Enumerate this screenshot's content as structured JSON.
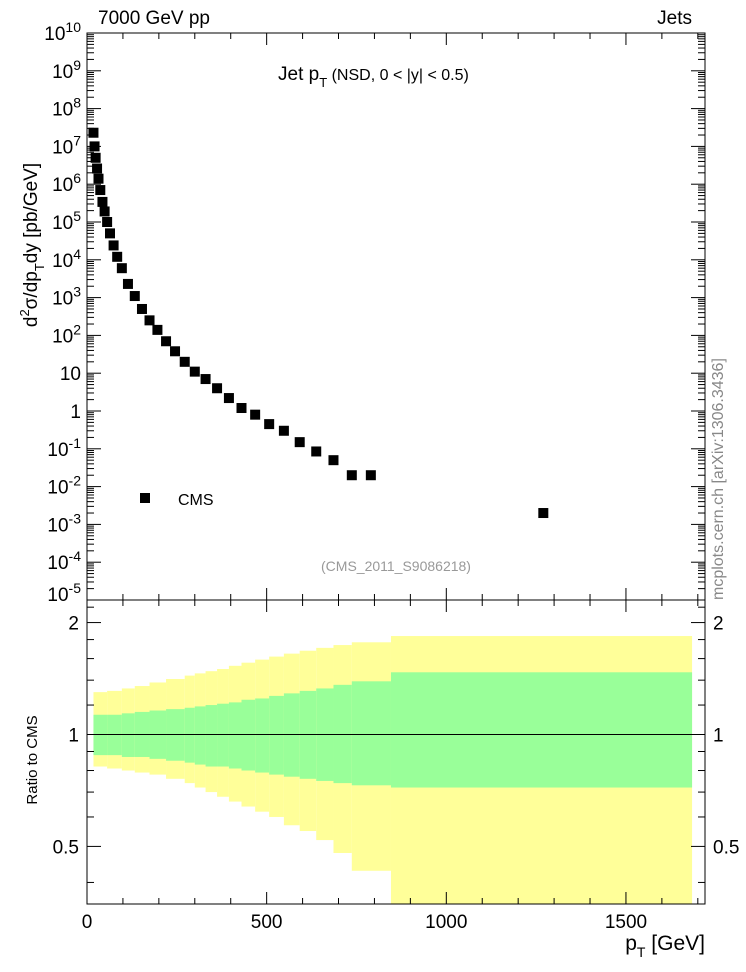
{
  "header": {
    "left": "7000 GeV pp",
    "right": "Jets"
  },
  "side_label": "mcplots.cern.ch [arXiv:1306.3436]",
  "chart_data": [
    {
      "type": "scatter",
      "title": "Jet p_T (NSD, 0 < |y| < 0.5)",
      "title_parts": {
        "main": "Jet p",
        "sub": "T",
        "rest": " (NSD,   0 < |y| < 0.5)"
      },
      "ylabel": "d²σ/dp_T dy [pb/GeV]",
      "y_scale": "log",
      "ylim": [
        1e-05,
        10000000000.0
      ],
      "xlim": [
        0,
        1720
      ],
      "y_tick_labels": [
        "10^10",
        "10^9",
        "10^8",
        "10^7",
        "10^6",
        "10^5",
        "10^4",
        "10^3",
        "10^2",
        "10",
        "1",
        "10^-1",
        "10^-2",
        "10^-3",
        "10^-4",
        "10^-5"
      ],
      "legend": {
        "entries": [
          "CMS"
        ],
        "placement": "lower-left"
      },
      "annotation": "(CMS_2011_S9086218)",
      "series": [
        {
          "name": "CMS",
          "marker": "square",
          "color": "#000000",
          "x": [
            18,
            21,
            24,
            28,
            32,
            37,
            43,
            49,
            56,
            64,
            74,
            84,
            97,
            114,
            133,
            153,
            174,
            196,
            220,
            245,
            272,
            300,
            330,
            362,
            395,
            430,
            468,
            507,
            548,
            592,
            638,
            686,
            737,
            790,
            1270
          ],
          "y": [
            23000000.0,
            10000000.0,
            5000000.0,
            2600000.0,
            1400000.0,
            700000.0,
            340000.0,
            190000.0,
            100000.0,
            50000.0,
            24000.0,
            12000.0,
            6000.0,
            2300.0,
            1100.0,
            500,
            250,
            140,
            70,
            38,
            20,
            11,
            7,
            4,
            2.2,
            1.2,
            0.8,
            0.45,
            0.3,
            0.15,
            0.085,
            0.05,
            0.02,
            0.02,
            0.002
          ]
        }
      ]
    },
    {
      "type": "area",
      "ylabel": "Ratio to CMS",
      "xlabel": "p_T [GeV]",
      "xlabel_parts": {
        "main": "p",
        "sub": "T",
        "rest": " [GeV]"
      },
      "xlim": [
        0,
        1720
      ],
      "ylim": [
        0.35,
        2.3
      ],
      "y_scale": "log",
      "x_ticks": [
        0,
        500,
        1000,
        1500
      ],
      "y_ticks": [
        0.5,
        1,
        2
      ],
      "reference_line": 1,
      "band_colors": {
        "inner": "#99ff99",
        "outer": "#ffff99"
      },
      "bins": [
        {
          "x0": 18,
          "x1": 56,
          "inner": [
            0.88,
            1.13
          ],
          "outer": [
            0.82,
            1.3
          ]
        },
        {
          "x0": 56,
          "x1": 97,
          "inner": [
            0.88,
            1.13
          ],
          "outer": [
            0.81,
            1.31
          ]
        },
        {
          "x0": 97,
          "x1": 133,
          "inner": [
            0.87,
            1.14
          ],
          "outer": [
            0.8,
            1.33
          ]
        },
        {
          "x0": 133,
          "x1": 174,
          "inner": [
            0.87,
            1.15
          ],
          "outer": [
            0.79,
            1.35
          ]
        },
        {
          "x0": 174,
          "x1": 220,
          "inner": [
            0.86,
            1.16
          ],
          "outer": [
            0.78,
            1.38
          ]
        },
        {
          "x0": 220,
          "x1": 272,
          "inner": [
            0.85,
            1.17
          ],
          "outer": [
            0.76,
            1.41
          ]
        },
        {
          "x0": 272,
          "x1": 300,
          "inner": [
            0.84,
            1.18
          ],
          "outer": [
            0.74,
            1.44
          ]
        },
        {
          "x0": 300,
          "x1": 330,
          "inner": [
            0.83,
            1.19
          ],
          "outer": [
            0.72,
            1.46
          ]
        },
        {
          "x0": 330,
          "x1": 362,
          "inner": [
            0.82,
            1.2
          ],
          "outer": [
            0.7,
            1.48
          ]
        },
        {
          "x0": 362,
          "x1": 395,
          "inner": [
            0.82,
            1.21
          ],
          "outer": [
            0.68,
            1.5
          ]
        },
        {
          "x0": 395,
          "x1": 430,
          "inner": [
            0.81,
            1.22
          ],
          "outer": [
            0.66,
            1.53
          ]
        },
        {
          "x0": 430,
          "x1": 468,
          "inner": [
            0.8,
            1.24
          ],
          "outer": [
            0.64,
            1.56
          ]
        },
        {
          "x0": 468,
          "x1": 507,
          "inner": [
            0.79,
            1.25
          ],
          "outer": [
            0.62,
            1.59
          ]
        },
        {
          "x0": 507,
          "x1": 548,
          "inner": [
            0.78,
            1.27
          ],
          "outer": [
            0.6,
            1.62
          ]
        },
        {
          "x0": 548,
          "x1": 592,
          "inner": [
            0.77,
            1.29
          ],
          "outer": [
            0.57,
            1.65
          ]
        },
        {
          "x0": 592,
          "x1": 638,
          "inner": [
            0.76,
            1.31
          ],
          "outer": [
            0.55,
            1.68
          ]
        },
        {
          "x0": 638,
          "x1": 686,
          "inner": [
            0.75,
            1.33
          ],
          "outer": [
            0.52,
            1.71
          ]
        },
        {
          "x0": 686,
          "x1": 737,
          "inner": [
            0.74,
            1.36
          ],
          "outer": [
            0.48,
            1.74
          ]
        },
        {
          "x0": 737,
          "x1": 846,
          "inner": [
            0.73,
            1.39
          ],
          "outer": [
            0.43,
            1.77
          ]
        },
        {
          "x0": 846,
          "x1": 1684,
          "inner": [
            0.72,
            1.47
          ],
          "outer": [
            0.35,
            1.84
          ]
        }
      ]
    }
  ]
}
